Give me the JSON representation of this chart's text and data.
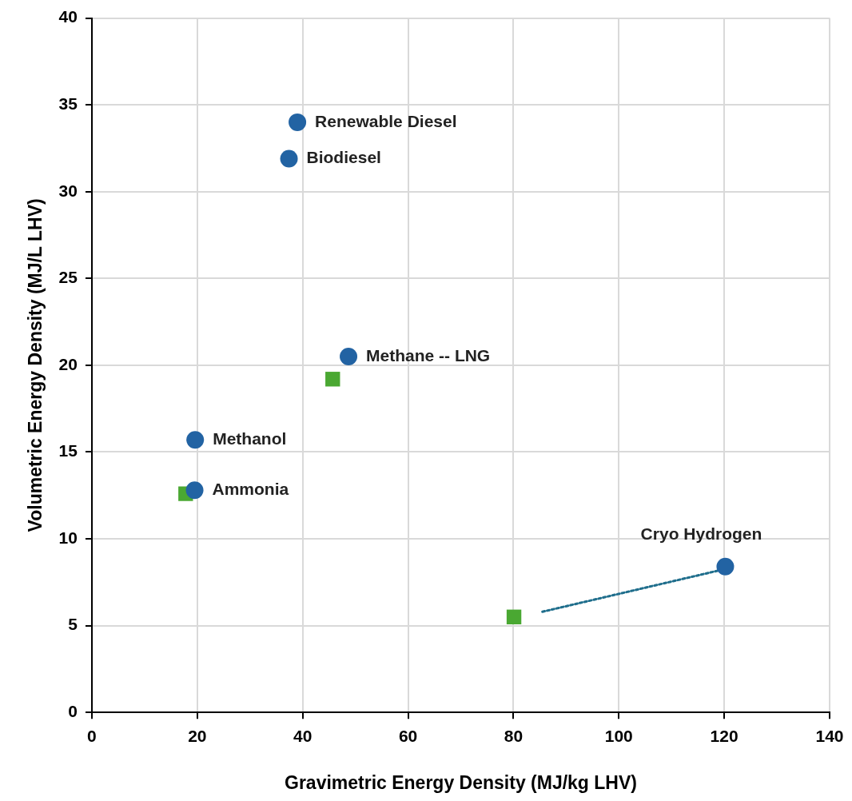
{
  "chart_data": {
    "type": "scatter",
    "xlabel": "Gravimetric Energy Density (MJ/kg LHV)",
    "ylabel": "Volumetric Energy Density (MJ/L LHV)",
    "xlim": [
      0,
      140
    ],
    "xticks": [
      0,
      20,
      40,
      60,
      80,
      100,
      120,
      140
    ],
    "ylim": [
      0,
      40
    ],
    "yticks": [
      0,
      5,
      10,
      15,
      20,
      25,
      30,
      35,
      40
    ],
    "grid": true,
    "legend": false,
    "series": [
      {
        "marker": "circle",
        "color": "#2263a3",
        "x": [
          39,
          37.4,
          48.7,
          19.6,
          19.5,
          120.2
        ],
        "values": [
          34,
          31.9,
          20.5,
          15.7,
          12.8,
          8.4
        ]
      },
      {
        "marker": "square",
        "color": "#4aa832",
        "x": [
          45.7,
          17.8,
          80.1
        ],
        "values": [
          19.2,
          12.6,
          5.5
        ]
      },
      {
        "type": "line",
        "marker": "none",
        "line_style": "dotted",
        "color": "#1f6e8c",
        "x": [
          85.5,
          119.3
        ],
        "values": [
          5.8,
          8.2
        ]
      }
    ],
    "annotations": [
      {
        "text": "Renewable Diesel",
        "x": 39,
        "y": 34
      },
      {
        "text": "Biodiesel",
        "x": 37.4,
        "y": 31.9
      },
      {
        "text": "Methane -- LNG",
        "x": 48.7,
        "y": 20.5
      },
      {
        "text": "Methanol",
        "x": 19.6,
        "y": 15.7
      },
      {
        "text": "Ammonia",
        "x": 19.5,
        "y": 12.8
      },
      {
        "text": "Cryo Hydrogen",
        "x": 120.2,
        "y": 8.4
      }
    ]
  }
}
